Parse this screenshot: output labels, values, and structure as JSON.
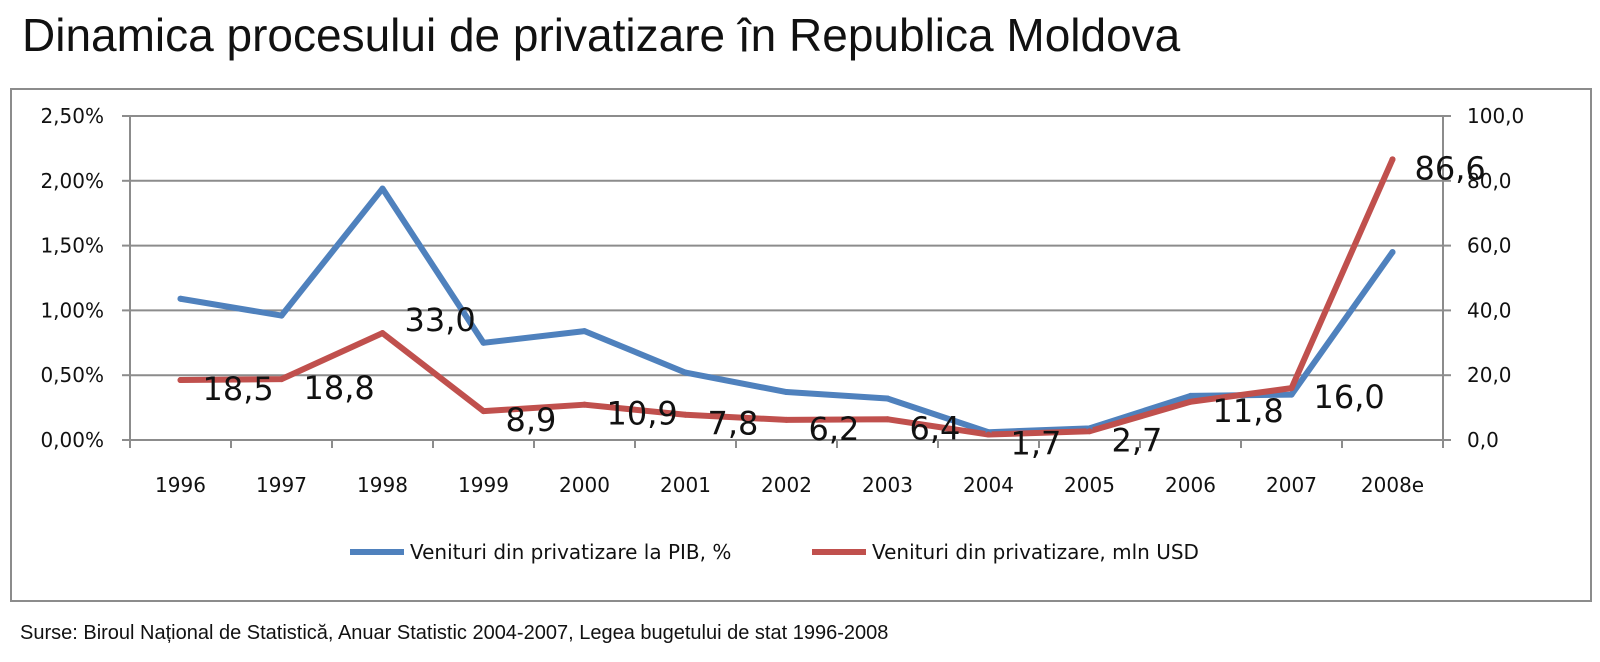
{
  "title": "Dinamica procesului de privatizare în Republica Moldova",
  "source": "Surse: Biroul Național de Statistică, Anuar Statistic 2004-2007, Legea bugetului de stat 1996-2008",
  "chart_data": {
    "type": "line",
    "categories": [
      "1996",
      "1997",
      "1998",
      "1999",
      "2000",
      "2001",
      "2002",
      "2003",
      "2004",
      "2005",
      "2006",
      "2007",
      "2008e"
    ],
    "series": [
      {
        "name": "Venituri din privatizare la PIB, %",
        "axis": "left",
        "color": "#4f81bd",
        "values": [
          1.09,
          0.96,
          1.94,
          0.75,
          0.84,
          0.52,
          0.37,
          0.32,
          0.06,
          0.09,
          0.34,
          0.35,
          1.45
        ]
      },
      {
        "name": "Venituri din privatizare, mln USD",
        "axis": "right",
        "color": "#c0504d",
        "values": [
          18.5,
          18.8,
          33.0,
          8.9,
          10.9,
          7.8,
          6.2,
          6.4,
          1.7,
          2.7,
          11.8,
          16.0,
          86.6
        ],
        "labels": [
          "18,5",
          "18,8",
          "33,0",
          "8,9",
          "10,9",
          "7,8",
          "6,2",
          "6,4",
          "1,7",
          "2,7",
          "11,8",
          "16,0",
          "86,6"
        ]
      }
    ],
    "y_left": {
      "ylim": [
        0,
        0.025
      ],
      "ticks": [
        0,
        0.005,
        0.01,
        0.015,
        0.02,
        0.025
      ],
      "tick_labels": [
        "0,00%",
        "0,50%",
        "1,00%",
        "1,50%",
        "2,00%",
        "2,50%"
      ]
    },
    "y_right": {
      "ylim": [
        0,
        100
      ],
      "ticks": [
        0,
        20,
        40,
        60,
        80,
        100
      ],
      "tick_labels": [
        "0,0",
        "20,0",
        "40,0",
        "60,0",
        "80,0",
        "100,0"
      ]
    },
    "grid": true,
    "legend_position": "bottom",
    "legend": [
      "Venituri din privatizare la PIB, %",
      "Venituri din privatizare, mln USD"
    ]
  }
}
